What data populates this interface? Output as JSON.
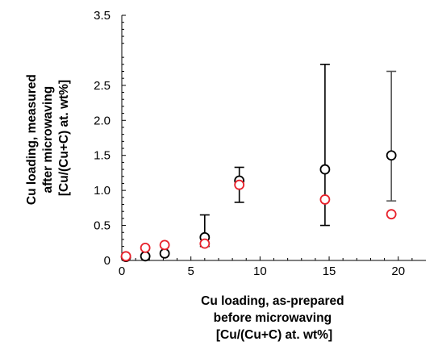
{
  "chart_data": {
    "type": "scatter",
    "title": "",
    "xlabel_lines": [
      "Cu loading, as-prepared",
      "before microwaving",
      "[Cu/(Cu+C) at. wt%]"
    ],
    "ylabel_lines": [
      "Cu loading, measured",
      "after microwaving",
      "[Cu/(Cu+C) at. wt%]"
    ],
    "xlim": [
      0,
      22
    ],
    "ylim": [
      0,
      3.5
    ],
    "x_ticks": [
      0,
      5,
      10,
      15,
      20
    ],
    "x_tick_labels": [
      "0",
      "5",
      "10",
      "15",
      "20"
    ],
    "y_ticks": [
      0,
      0.5,
      1.0,
      1.5,
      2.0,
      2.5,
      3.5
    ],
    "y_tick_labels": [
      "0",
      "0.5",
      "1.0",
      "1.5",
      "2.0",
      "2.5",
      "3.5"
    ],
    "grid": false,
    "legend": "none",
    "series": [
      {
        "color": "#000000",
        "marker": "open-circle",
        "points": [
          {
            "x": 0.3,
            "y": 0.05
          },
          {
            "x": 1.7,
            "y": 0.06
          },
          {
            "x": 3.1,
            "y": 0.1
          },
          {
            "x": 6.0,
            "y": 0.33,
            "err_low": 0.2,
            "err_high": 0.65
          },
          {
            "x": 8.5,
            "y": 1.14,
            "err_low": 0.83,
            "err_high": 1.33
          },
          {
            "x": 14.7,
            "y": 1.3,
            "err_low": 0.5,
            "err_high": 2.8
          },
          {
            "x": 19.5,
            "y": 1.5,
            "err_low": 0.85,
            "err_high": 2.7,
            "err_color": "#555555"
          }
        ]
      },
      {
        "color": "#e8222c",
        "marker": "open-circle",
        "points": [
          {
            "x": 0.3,
            "y": 0.06
          },
          {
            "x": 1.7,
            "y": 0.18
          },
          {
            "x": 3.1,
            "y": 0.22
          },
          {
            "x": 6.0,
            "y": 0.24
          },
          {
            "x": 8.5,
            "y": 1.08
          },
          {
            "x": 14.7,
            "y": 0.87
          },
          {
            "x": 19.5,
            "y": 0.66
          }
        ]
      }
    ]
  }
}
